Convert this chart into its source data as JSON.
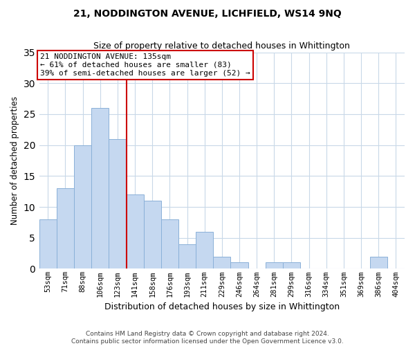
{
  "title": "21, NODDINGTON AVENUE, LICHFIELD, WS14 9NQ",
  "subtitle": "Size of property relative to detached houses in Whittington",
  "xlabel": "Distribution of detached houses by size in Whittington",
  "ylabel": "Number of detached properties",
  "bar_labels": [
    "53sqm",
    "71sqm",
    "88sqm",
    "106sqm",
    "123sqm",
    "141sqm",
    "158sqm",
    "176sqm",
    "193sqm",
    "211sqm",
    "229sqm",
    "246sqm",
    "264sqm",
    "281sqm",
    "299sqm",
    "316sqm",
    "334sqm",
    "351sqm",
    "369sqm",
    "386sqm",
    "404sqm"
  ],
  "bar_values": [
    8,
    13,
    20,
    26,
    21,
    12,
    11,
    8,
    4,
    6,
    2,
    1,
    0,
    1,
    1,
    0,
    0,
    0,
    0,
    2,
    0
  ],
  "bar_color": "#c5d8f0",
  "bar_edge_color": "#8ab0d8",
  "vline_color": "#cc0000",
  "vline_position": 4.5,
  "annotation_title": "21 NODDINGTON AVENUE: 135sqm",
  "annotation_line1": "← 61% of detached houses are smaller (83)",
  "annotation_line2": "39% of semi-detached houses are larger (52) →",
  "annotation_box_color": "#ffffff",
  "annotation_box_edge": "#cc0000",
  "ylim": [
    0,
    35
  ],
  "yticks": [
    0,
    5,
    10,
    15,
    20,
    25,
    30,
    35
  ],
  "footer_line1": "Contains HM Land Registry data © Crown copyright and database right 2024.",
  "footer_line2": "Contains public sector information licensed under the Open Government Licence v3.0.",
  "background_color": "#ffffff",
  "grid_color": "#c8d8e8"
}
